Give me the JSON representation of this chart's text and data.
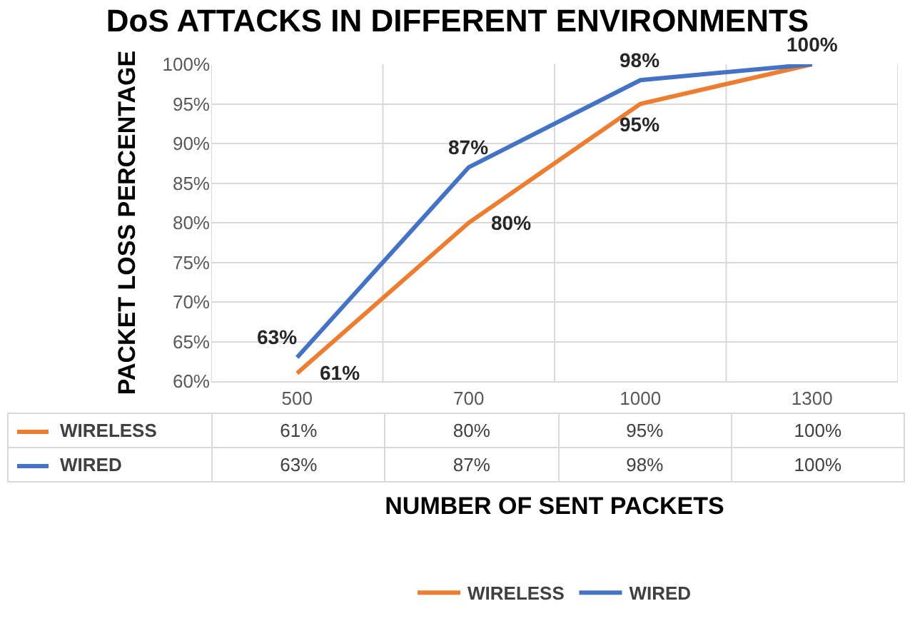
{
  "chart_data": {
    "type": "line",
    "title": "DoS ATTACKS IN DIFFERENT ENVIRONMENTS",
    "xlabel": "NUMBER OF SENT PACKETS",
    "ylabel": "PACKET LOSS PERCENTAGE",
    "categories": [
      "500",
      "700",
      "1000",
      "1300"
    ],
    "series": [
      {
        "name": "WIRELESS",
        "color": "#ed7d31",
        "values": [
          61,
          80,
          95,
          100
        ],
        "value_labels": [
          "61%",
          "80%",
          "95%",
          "100%"
        ]
      },
      {
        "name": "WIRED",
        "color": "#4472c4",
        "values": [
          63,
          87,
          98,
          100
        ],
        "value_labels": [
          "63%",
          "87%",
          "98%",
          "100%"
        ]
      }
    ],
    "ylim": [
      60,
      100
    ],
    "yticks": [
      {
        "value": 60,
        "label": "60%"
      },
      {
        "value": 65,
        "label": "65%"
      },
      {
        "value": 70,
        "label": "70%"
      },
      {
        "value": 75,
        "label": "75%"
      },
      {
        "value": 80,
        "label": "80%"
      },
      {
        "value": 85,
        "label": "85%"
      },
      {
        "value": 90,
        "label": "90%"
      },
      {
        "value": 95,
        "label": "95%"
      },
      {
        "value": 100,
        "label": "100%"
      }
    ],
    "grid": true,
    "legend": "bottom",
    "marker": "none",
    "line_style": "solid"
  }
}
